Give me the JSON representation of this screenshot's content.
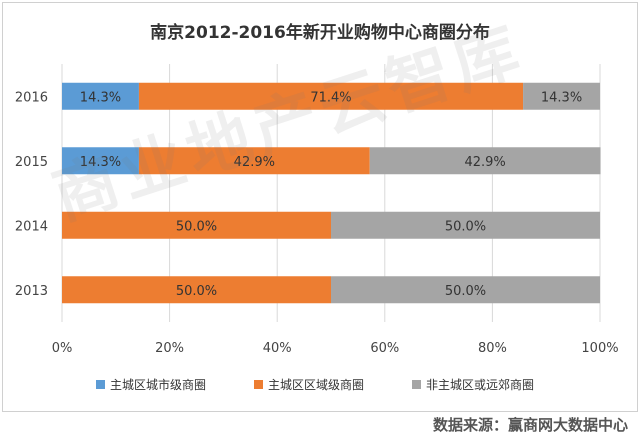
{
  "watermark": "商业地产云智库",
  "source": "数据来源：赢商网大数据中心",
  "chart_data": {
    "type": "bar",
    "orientation": "horizontal",
    "stacked": true,
    "title": "南京2012-2016年新开业购物中心商圈分布",
    "categories": [
      "2016",
      "2015",
      "2014",
      "2013"
    ],
    "series": [
      {
        "name": "主城区城市级商圈",
        "color": "#5b9bd5",
        "values": [
          14.3,
          14.3,
          0,
          0
        ],
        "labels": [
          "14.3%",
          "14.3%",
          "",
          ""
        ]
      },
      {
        "name": "主城区区域级商圈",
        "color": "#ed7d31",
        "values": [
          71.4,
          42.9,
          50.0,
          50.0
        ],
        "labels": [
          "71.4%",
          "42.9%",
          "50.0%",
          "50.0%"
        ]
      },
      {
        "name": "非主城区或远郊商圈",
        "color": "#a5a5a5",
        "values": [
          14.3,
          42.9,
          50.0,
          50.0
        ],
        "labels": [
          "14.3%",
          "42.9%",
          "50.0%",
          "50.0%"
        ]
      }
    ],
    "xlim": [
      0,
      100
    ],
    "xticks": [
      "0%",
      "20%",
      "40%",
      "60%",
      "80%",
      "100%"
    ],
    "grid": true,
    "legend_position": "bottom"
  }
}
